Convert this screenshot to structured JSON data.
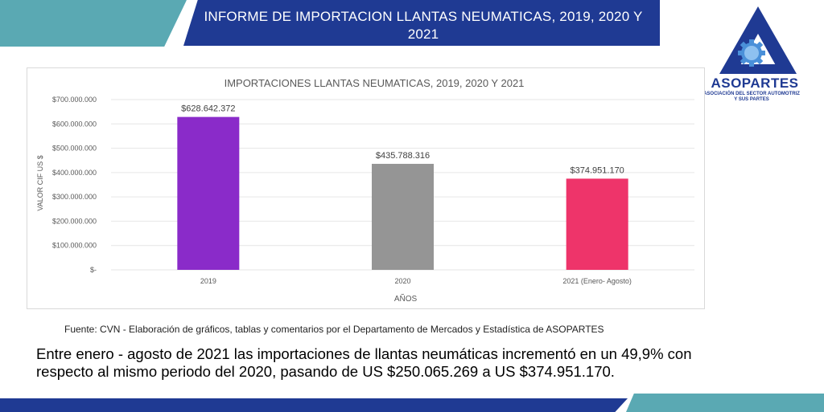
{
  "header": {
    "title_line1": "INFORME DE IMPORTACION LLANTAS NEUMATICAS, 2019, 2020 Y",
    "title_line2": "2021"
  },
  "logo": {
    "name": "ASOPARTES",
    "subtitle_line1": "ASOCIACIÓN DEL SECTOR AUTOMOTRIZ",
    "subtitle_line2": "Y SUS PARTES"
  },
  "chart_data": {
    "type": "bar",
    "title": "IMPORTACIONES LLANTAS NEUMATICAS, 2019, 2020 Y 2021",
    "xlabel": "AÑOS",
    "ylabel": "VALOR CIF US $",
    "categories": [
      "2019",
      "2020",
      "2021 (Enero- Agosto)"
    ],
    "values": [
      628642372,
      435788316,
      374951170
    ],
    "data_labels": [
      "$628.642.372",
      "$435.788.316",
      "$374.951.170"
    ],
    "bar_colors": [
      "#8a2bc9",
      "#959595",
      "#ee346a"
    ],
    "ylim": [
      0,
      700000000
    ],
    "y_ticks": [
      0,
      100000000,
      200000000,
      300000000,
      400000000,
      500000000,
      600000000,
      700000000
    ],
    "y_tick_labels": [
      "$-",
      "$100.000.000",
      "$200.000.000",
      "$300.000.000",
      "$400.000.000",
      "$500.000.000",
      "$600.000.000",
      "$700.000.000"
    ],
    "grid": true
  },
  "source_text": "Fuente: CVN - Elaboración de gráficos, tablas y comentarios  por el Departamento de Mercados y Estadística de ASOPARTES",
  "summary": {
    "line1": "Entre enero - agosto de 2021 las importaciones de llantas neumáticas incrementó en un 49,9% con",
    "line2": "respecto al mismo periodo del 2020, pasando de US $250.065.269 a US $374.951.170."
  },
  "colors": {
    "navy": "#1f3a93",
    "teal": "#5aa9b3",
    "gear_blue": "#4a90d9"
  }
}
